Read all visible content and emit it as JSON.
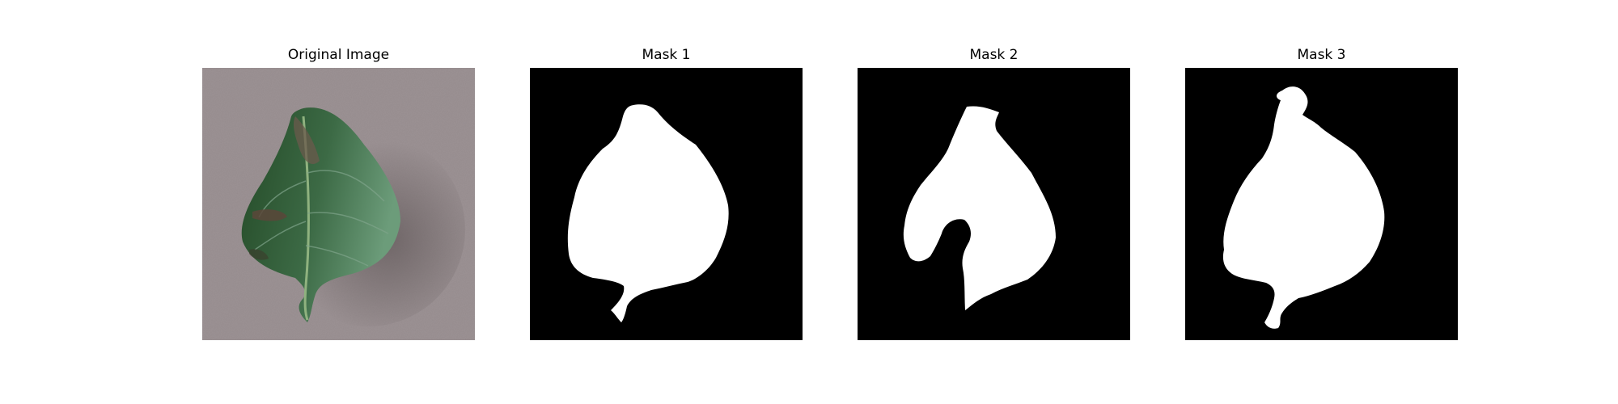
{
  "panels": [
    {
      "title": "Original Image",
      "icon": "leaf-photo"
    },
    {
      "title": "Mask 1",
      "icon": "leaf-mask"
    },
    {
      "title": "Mask 2",
      "icon": "leaf-mask"
    },
    {
      "title": "Mask 3",
      "icon": "leaf-mask"
    }
  ],
  "colors": {
    "background": "#9c9294",
    "leaf_dark": "#2f5530",
    "leaf_light": "#5e8f68",
    "mask_bg": "#000000",
    "mask_fg": "#ffffff"
  }
}
